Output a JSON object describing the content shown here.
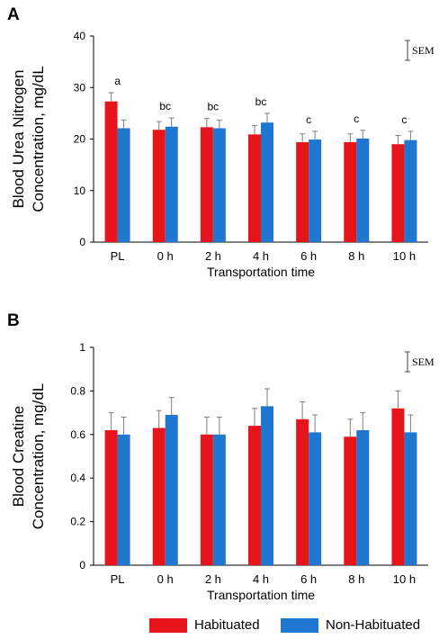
{
  "colors": {
    "habituated": "#e8141b",
    "non_habituated": "#1f77d0",
    "error_bar": "#7f7f7f",
    "axis": "#000000"
  },
  "legend": {
    "habituated": "Habituated",
    "non_habituated": "Non-Habituated"
  },
  "chart_data": [
    {
      "type": "bar",
      "panel_label": "A",
      "title": "",
      "ylabel": [
        "Blood Urea Nitrogen",
        "Concentration, mg/dL"
      ],
      "xlabel": "Transportation time",
      "ylim": [
        0,
        40
      ],
      "yticks": [
        0,
        10,
        20,
        30,
        40
      ],
      "ytick_labels": [
        "0",
        "10",
        "20",
        "30",
        "40"
      ],
      "categories": [
        "PL",
        "0 h",
        "2 h",
        "4 h",
        "6 h",
        "8 h",
        "10 h"
      ],
      "series": [
        {
          "name": "Habituated",
          "values": [
            27.3,
            21.8,
            22.3,
            20.9,
            19.4,
            19.4,
            19.0
          ],
          "error": [
            1.7,
            1.6,
            1.7,
            1.7,
            1.6,
            1.6,
            1.7
          ]
        },
        {
          "name": "Non-Habituated",
          "values": [
            22.1,
            22.4,
            22.1,
            23.2,
            19.9,
            20.1,
            19.8
          ],
          "error": [
            1.6,
            1.7,
            1.6,
            1.8,
            1.6,
            1.6,
            1.7
          ]
        }
      ],
      "group_labels": [
        "a",
        "bc",
        "bc",
        "bc",
        "c",
        "c",
        "c"
      ],
      "sem_label": "SEM",
      "grid": false
    },
    {
      "type": "bar",
      "panel_label": "B",
      "title": "",
      "ylabel": [
        "Blood Creatine",
        "Concentration, mg/dL"
      ],
      "xlabel": "Transportation time",
      "ylim": [
        0,
        1
      ],
      "yticks": [
        0,
        0.2,
        0.4,
        0.6,
        0.8,
        1
      ],
      "ytick_labels": [
        "0",
        "0.2",
        "0.4",
        "0.6",
        "0.8",
        "1"
      ],
      "categories": [
        "PL",
        "0 h",
        "2 h",
        "4 h",
        "6 h",
        "8 h",
        "10 h"
      ],
      "series": [
        {
          "name": "Habituated",
          "values": [
            0.62,
            0.63,
            0.6,
            0.64,
            0.67,
            0.59,
            0.72
          ],
          "error": [
            0.08,
            0.08,
            0.08,
            0.08,
            0.08,
            0.08,
            0.08
          ]
        },
        {
          "name": "Non-Habituated",
          "values": [
            0.6,
            0.69,
            0.6,
            0.73,
            0.61,
            0.62,
            0.61
          ],
          "error": [
            0.08,
            0.08,
            0.08,
            0.08,
            0.08,
            0.08,
            0.08
          ]
        }
      ],
      "group_labels": [],
      "sem_label": "SEM",
      "grid": false
    }
  ]
}
